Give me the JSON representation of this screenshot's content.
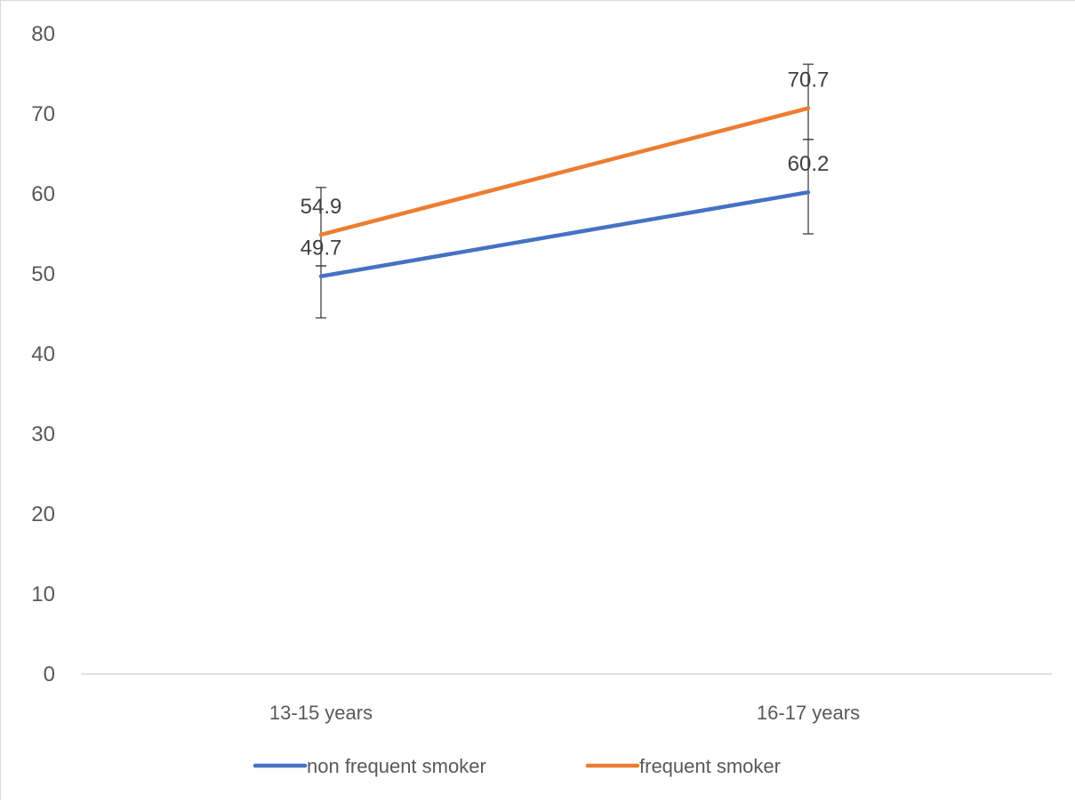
{
  "chart_data": {
    "type": "line",
    "categories": [
      "13-15 years",
      "16-17 years"
    ],
    "ylim": [
      0,
      80
    ],
    "yticks": [
      0,
      10,
      20,
      30,
      40,
      50,
      60,
      70,
      80
    ],
    "grid": false,
    "legend_position": "bottom",
    "series": [
      {
        "name": "non frequent smoker",
        "color": "#4472C4",
        "values": [
          49.7,
          60.2
        ],
        "data_labels": [
          "49.7",
          "60.2"
        ],
        "error_low": [
          44.5,
          55.0
        ],
        "error_high": [
          51.0,
          66.8
        ]
      },
      {
        "name": "frequent smoker",
        "color": "#ED7D31",
        "values": [
          54.9,
          70.7
        ],
        "data_labels": [
          "54.9",
          "70.7"
        ],
        "error_low": [
          51.0,
          66.8
        ],
        "error_high": [
          60.8,
          76.2
        ]
      }
    ]
  }
}
